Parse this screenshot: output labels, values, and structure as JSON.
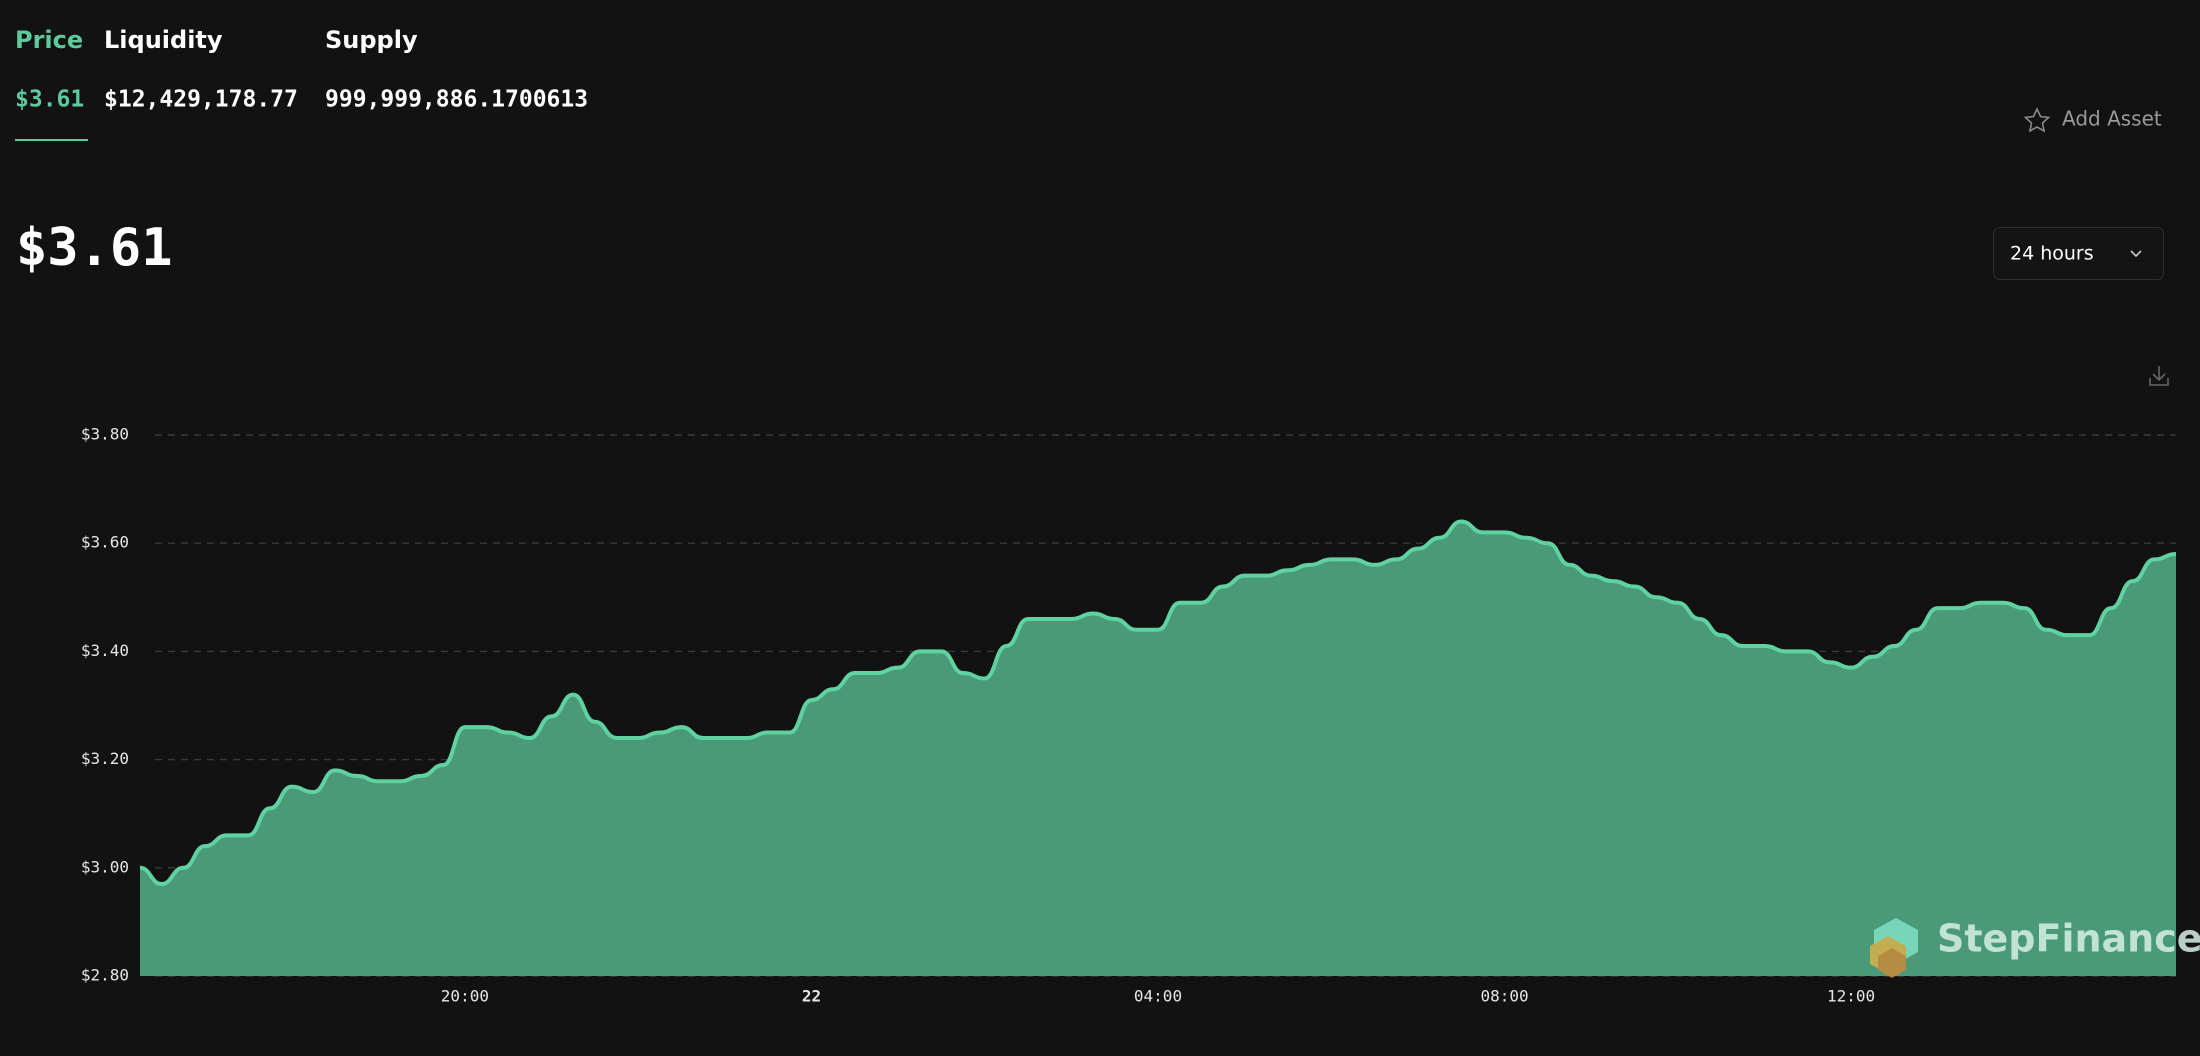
{
  "header": {
    "tabs": [
      {
        "label": "Price",
        "value": "$3.61"
      },
      {
        "label": "Liquidity",
        "value": "$12,429,178.77"
      },
      {
        "label": "Supply",
        "value": "999,999,886.1700613"
      }
    ],
    "add_asset": "Add Asset"
  },
  "price_display": "$3.61",
  "range_select": "24 hours",
  "watermark": "StepFinance",
  "chart_data": {
    "type": "area",
    "color": "#4a9a7a",
    "line_color": "#5ed3a0",
    "grid": true,
    "categories": [
      null,
      null,
      null,
      null,
      null,
      null,
      null,
      null,
      null,
      null,
      null,
      null,
      null,
      null,
      null,
      "20:00",
      null,
      null,
      null,
      null,
      null,
      null,
      null,
      null,
      null,
      null,
      null,
      null,
      null,
      null,
      null,
      "22",
      null,
      null,
      null,
      null,
      null,
      null,
      null,
      null,
      null,
      null,
      null,
      null,
      null,
      null,
      null,
      "04:00",
      null,
      null,
      null,
      null,
      null,
      null,
      null,
      null,
      null,
      null,
      null,
      null,
      null,
      null,
      null,
      "08:00",
      null,
      null,
      null,
      null,
      null,
      null,
      null,
      null,
      null,
      null,
      null,
      null,
      null,
      null,
      null,
      "12:00",
      null,
      null,
      null,
      null,
      null,
      null,
      null,
      null,
      null,
      null,
      null,
      null,
      null,
      null,
      null
    ],
    "values": [
      3.0,
      2.97,
      3.0,
      3.04,
      3.06,
      3.06,
      3.11,
      3.15,
      3.14,
      3.18,
      3.17,
      3.16,
      3.16,
      3.17,
      3.19,
      3.26,
      3.26,
      3.25,
      3.24,
      3.28,
      3.32,
      3.27,
      3.24,
      3.24,
      3.25,
      3.26,
      3.24,
      3.24,
      3.24,
      3.25,
      3.25,
      3.31,
      3.33,
      3.36,
      3.36,
      3.37,
      3.4,
      3.4,
      3.36,
      3.35,
      3.41,
      3.46,
      3.46,
      3.46,
      3.47,
      3.46,
      3.44,
      3.44,
      3.49,
      3.49,
      3.52,
      3.54,
      3.54,
      3.55,
      3.56,
      3.57,
      3.57,
      3.56,
      3.57,
      3.59,
      3.61,
      3.64,
      3.62,
      3.62,
      3.61,
      3.6,
      3.56,
      3.54,
      3.53,
      3.52,
      3.5,
      3.49,
      3.46,
      3.43,
      3.41,
      3.41,
      3.4,
      3.4,
      3.38,
      3.37,
      3.39,
      3.41,
      3.44,
      3.48,
      3.48,
      3.49,
      3.49,
      3.48,
      3.44,
      3.43,
      3.43,
      3.48,
      3.53,
      3.57,
      3.58
    ],
    "ylim": [
      2.8,
      3.8
    ],
    "yticks": [
      {
        "value": 2.8,
        "label": "$2.80"
      },
      {
        "value": 3.0,
        "label": "$3.00"
      },
      {
        "value": 3.2,
        "label": "$3.20"
      },
      {
        "value": 3.4,
        "label": "$3.40"
      },
      {
        "value": 3.6,
        "label": "$3.60"
      },
      {
        "value": 3.8,
        "label": "$3.80"
      }
    ]
  }
}
